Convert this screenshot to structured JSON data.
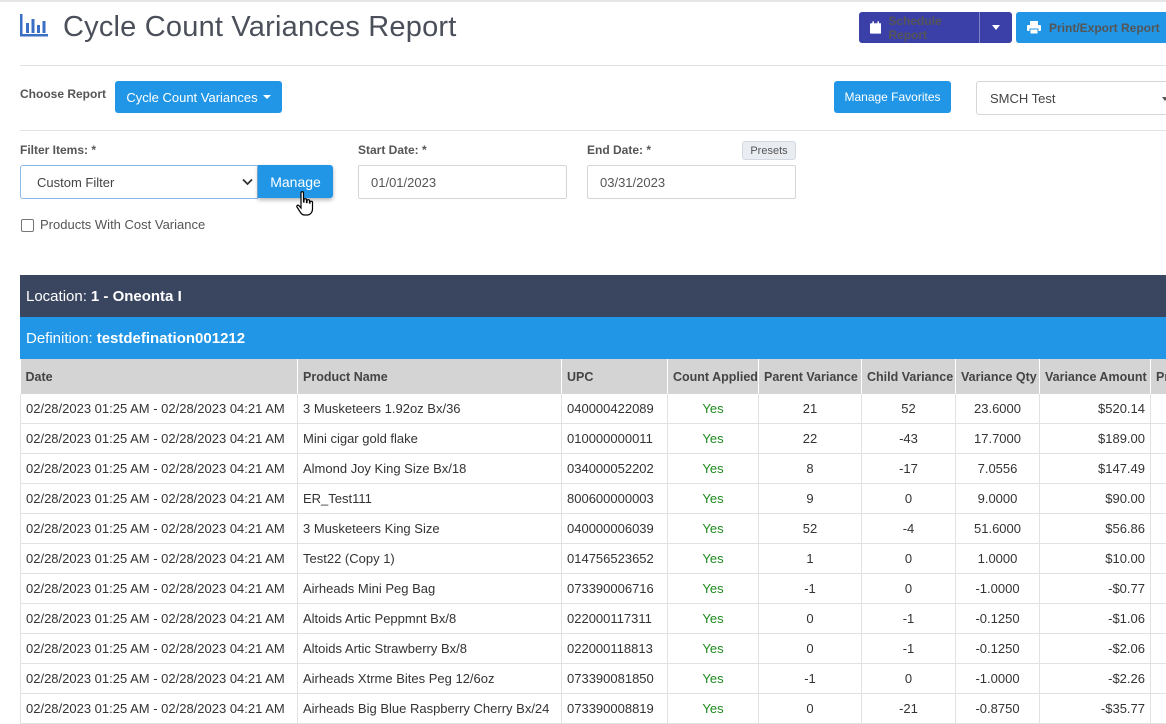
{
  "header": {
    "title": "Cycle Count Variances Report",
    "schedule_label": "Schedule Report",
    "print_label": "Print/Export Report"
  },
  "toolbar": {
    "choose_label": "Choose Report",
    "report_button": "Cycle Count Variances",
    "favorites_button": "Manage Favorites",
    "store_value": "SMCH Test"
  },
  "filters": {
    "filter_label": "Filter Items: *",
    "filter_value": "Custom Filter",
    "manage_button": "Manage",
    "start_label": "Start Date: *",
    "start_value": "01/01/2023",
    "end_label": "End Date: *",
    "end_value": "03/31/2023",
    "presets_button": "Presets",
    "checkbox_label": "Products With Cost Variance"
  },
  "report": {
    "location_prefix": "Location:",
    "location_value": "1 - Oneonta I",
    "definition_prefix": "Definition:",
    "definition_value": "testdefination001212",
    "columns": [
      "Date",
      "Product Name",
      "UPC",
      "Count Applied",
      "Parent Variance",
      "Child Variance",
      "Variance Qty",
      "Variance Amount",
      "Pr"
    ],
    "rows": [
      [
        "02/28/2023 01:25 AM - 02/28/2023 04:21 AM",
        "3 Musketeers 1.92oz Bx/36",
        "040000422089",
        "Yes",
        "21",
        "52",
        "23.6000",
        "$520.14"
      ],
      [
        "02/28/2023 01:25 AM - 02/28/2023 04:21 AM",
        "Mini cigar gold flake",
        "010000000011",
        "Yes",
        "22",
        "-43",
        "17.7000",
        "$189.00"
      ],
      [
        "02/28/2023 01:25 AM - 02/28/2023 04:21 AM",
        "Almond Joy King Size Bx/18",
        "034000052202",
        "Yes",
        "8",
        "-17",
        "7.0556",
        "$147.49"
      ],
      [
        "02/28/2023 01:25 AM - 02/28/2023 04:21 AM",
        "ER_Test111",
        "800600000003",
        "Yes",
        "9",
        "0",
        "9.0000",
        "$90.00"
      ],
      [
        "02/28/2023 01:25 AM - 02/28/2023 04:21 AM",
        "3 Musketeers King Size",
        "040000006039",
        "Yes",
        "52",
        "-4",
        "51.6000",
        "$56.86"
      ],
      [
        "02/28/2023 01:25 AM - 02/28/2023 04:21 AM",
        "Test22 (Copy 1)",
        "014756523652",
        "Yes",
        "1",
        "0",
        "1.0000",
        "$10.00"
      ],
      [
        "02/28/2023 01:25 AM - 02/28/2023 04:21 AM",
        "Airheads Mini Peg Bag",
        "073390006716",
        "Yes",
        "-1",
        "0",
        "-1.0000",
        "-$0.77"
      ],
      [
        "02/28/2023 01:25 AM - 02/28/2023 04:21 AM",
        "Altoids Artic Peppmnt Bx/8",
        "022000117311",
        "Yes",
        "0",
        "-1",
        "-0.1250",
        "-$1.06"
      ],
      [
        "02/28/2023 01:25 AM - 02/28/2023 04:21 AM",
        "Altoids Artic Strawberry Bx/8",
        "022000118813",
        "Yes",
        "0",
        "-1",
        "-0.1250",
        "-$2.06"
      ],
      [
        "02/28/2023 01:25 AM - 02/28/2023 04:21 AM",
        "Airheads Xtrme Bites Peg 12/6oz",
        "073390081850",
        "Yes",
        "-1",
        "0",
        "-1.0000",
        "-$2.26"
      ],
      [
        "02/28/2023 01:25 AM - 02/28/2023 04:21 AM",
        "Airheads Big Blue Raspberry Cherry Bx/24",
        "073390008819",
        "Yes",
        "0",
        "-21",
        "-0.8750",
        "-$35.77"
      ]
    ]
  },
  "colors": {
    "primary": "#2196e6",
    "schedule": "#3b40a8",
    "location_bar": "#3a4660",
    "yes": "#1e8a1e"
  },
  "icons": [
    "bar-chart-icon",
    "calendar-icon",
    "printer-icon",
    "caret-down-icon",
    "chevron-down-icon",
    "hand-cursor-icon"
  ]
}
